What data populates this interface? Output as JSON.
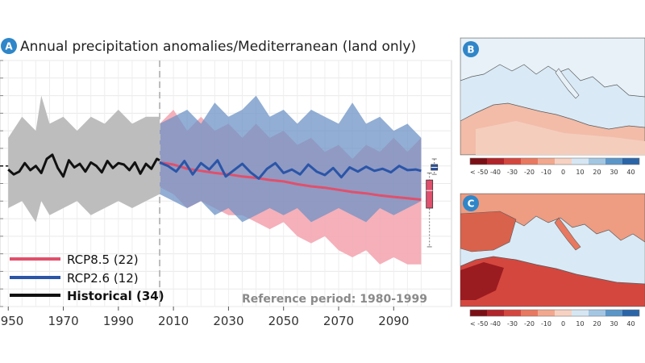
{
  "panel_a": {
    "badge": "A",
    "title": "Annual precipitation anomalies/Mediterranean (land only)",
    "reference_note": "Reference period: 1980-1999",
    "legend": [
      {
        "label": "RCP8.5 (22)",
        "color": "#e0506c"
      },
      {
        "label": "RCP2.6 (12)",
        "color": "#2a55a8"
      },
      {
        "label": "Historical (34)",
        "color": "#111111"
      }
    ]
  },
  "panel_b": {
    "badge": "B"
  },
  "panel_c": {
    "badge": "C"
  },
  "colorbar": {
    "ticks": [
      "< -50",
      "-40",
      "-30",
      "-20",
      "-10",
      "0",
      "10",
      "20",
      "30",
      "40"
    ],
    "colors": [
      "#7a1016",
      "#b0242a",
      "#d4473f",
      "#e8785f",
      "#f2a88e",
      "#f7d2c2",
      "#d6e7f3",
      "#a3c7e3",
      "#5b96c8",
      "#2a65a8"
    ]
  },
  "colors": {
    "historical_band": "#bdbdbd",
    "rcp85_band": "#f4a7b3",
    "rcp26_band": "#6e93c6",
    "rcp85_line": "#e0506c",
    "rcp26_line": "#2a55a8",
    "historical_line": "#111111",
    "badge": "#2f86c8",
    "land_dry": "#f2bca8",
    "sea": "#d9eaf6"
  },
  "chart_data": {
    "type": "area",
    "xlabel": "",
    "ylabel": "",
    "xlim": [
      1947,
      2111
    ],
    "ylim": [
      -20,
      15
    ],
    "grid": true,
    "x_ticks": [
      1950,
      1970,
      1990,
      2010,
      2030,
      2050,
      2070,
      2090
    ],
    "vline_x": 2005,
    "series": [
      {
        "name": "Historical (34)",
        "kind": "band",
        "x": [
          1950,
          1955,
          1960,
          1962,
          1965,
          1970,
          1975,
          1980,
          1985,
          1990,
          1995,
          2000,
          2005
        ],
        "upper": [
          4,
          7,
          5,
          10,
          6,
          7,
          5,
          7,
          6,
          8,
          6,
          7,
          7
        ],
        "lower": [
          -6,
          -5,
          -8,
          -5,
          -7,
          -6,
          -5,
          -7,
          -6,
          -5,
          -6,
          -5,
          -4
        ]
      },
      {
        "name": "RCP8.5 (22)",
        "kind": "band",
        "x": [
          2005,
          2010,
          2015,
          2020,
          2025,
          2030,
          2035,
          2040,
          2045,
          2050,
          2055,
          2060,
          2065,
          2070,
          2075,
          2080,
          2085,
          2090,
          2095,
          2100
        ],
        "upper": [
          6,
          8,
          5,
          7,
          5,
          6,
          4,
          6,
          4,
          5,
          3,
          4,
          2,
          3,
          1,
          3,
          2,
          4,
          2,
          4
        ],
        "lower": [
          -3,
          -4,
          -6,
          -5,
          -6,
          -7,
          -7,
          -8,
          -9,
          -8,
          -10,
          -11,
          -10,
          -12,
          -13,
          -12,
          -14,
          -13,
          -14,
          -14
        ]
      },
      {
        "name": "RCP2.6 (12)",
        "kind": "band",
        "x": [
          2005,
          2010,
          2015,
          2020,
          2025,
          2030,
          2035,
          2040,
          2045,
          2050,
          2055,
          2060,
          2065,
          2070,
          2075,
          2080,
          2085,
          2090,
          2095,
          2100
        ],
        "upper": [
          6,
          7,
          8,
          6,
          9,
          7,
          8,
          10,
          7,
          8,
          6,
          8,
          7,
          6,
          9,
          6,
          7,
          5,
          6,
          4
        ],
        "lower": [
          -4,
          -5,
          -6,
          -5,
          -7,
          -6,
          -8,
          -7,
          -6,
          -7,
          -6,
          -8,
          -7,
          -6,
          -7,
          -8,
          -6,
          -7,
          -6,
          -5
        ]
      },
      {
        "name": "RCP8.5 (22)",
        "kind": "line",
        "x": [
          2005,
          2010,
          2015,
          2020,
          2025,
          2030,
          2035,
          2040,
          2045,
          2050,
          2055,
          2060,
          2065,
          2070,
          2075,
          2080,
          2085,
          2090,
          2095,
          2100
        ],
        "values": [
          0.5,
          0.2,
          -0.4,
          -0.7,
          -1.0,
          -1.2,
          -1.5,
          -1.7,
          -2.0,
          -2.2,
          -2.6,
          -2.9,
          -3.1,
          -3.4,
          -3.7,
          -3.9,
          -4.2,
          -4.4,
          -4.6,
          -4.8
        ]
      },
      {
        "name": "RCP2.6 (12)",
        "kind": "line",
        "x": [
          2005,
          2008,
          2011,
          2014,
          2017,
          2020,
          2023,
          2026,
          2029,
          2032,
          2035,
          2038,
          2041,
          2044,
          2047,
          2050,
          2053,
          2056,
          2059,
          2062,
          2065,
          2068,
          2071,
          2074,
          2077,
          2080,
          2083,
          2086,
          2089,
          2092,
          2095,
          2098,
          2100
        ],
        "values": [
          0.5,
          0.0,
          -0.8,
          0.7,
          -1.2,
          0.4,
          -0.5,
          0.8,
          -1.5,
          -0.6,
          0.3,
          -0.9,
          -1.8,
          -0.4,
          0.4,
          -1.0,
          -0.5,
          -1.2,
          0.2,
          -0.8,
          -1.3,
          -0.3,
          -1.6,
          -0.2,
          -0.8,
          -0.1,
          -0.7,
          -0.4,
          -0.9,
          0.0,
          -0.6,
          -0.5,
          -0.7
        ]
      },
      {
        "name": "Historical (34)",
        "kind": "line",
        "x": [
          1950,
          1952,
          1954,
          1956,
          1958,
          1960,
          1962,
          1964,
          1966,
          1968,
          1970,
          1972,
          1974,
          1976,
          1978,
          1980,
          1982,
          1984,
          1986,
          1988,
          1990,
          1992,
          1994,
          1996,
          1998,
          2000,
          2002,
          2004,
          2005
        ],
        "values": [
          -0.5,
          -1.2,
          -0.8,
          0.4,
          -0.6,
          0.0,
          -1.0,
          1.0,
          1.6,
          -0.3,
          -1.5,
          0.8,
          -0.2,
          0.3,
          -0.8,
          0.5,
          0.0,
          -0.9,
          0.7,
          -0.3,
          0.4,
          0.2,
          -0.6,
          0.5,
          -1.1,
          0.3,
          -0.4,
          1.0,
          0.8
        ]
      }
    ],
    "box_markers": [
      {
        "name": "RCP2.6 (12)",
        "x": 2103,
        "whisker_low": -1.2,
        "q1": -0.6,
        "median": -0.2,
        "q3": 0.2,
        "whisker_high": 1.0
      },
      {
        "name": "RCP8.5 (22)",
        "x": 2103,
        "whisker_low": -11.5,
        "q1": -6.0,
        "median": -3.5,
        "q3": -2.0,
        "whisker_high": -1.0
      }
    ]
  }
}
